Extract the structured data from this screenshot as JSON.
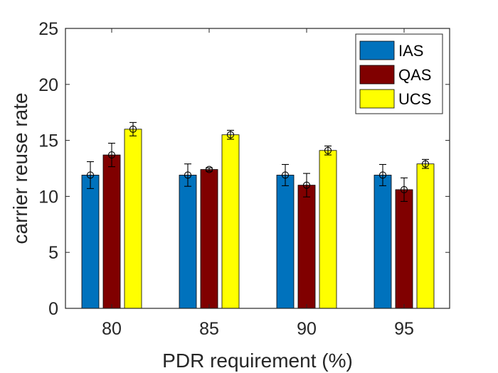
{
  "chart_data": {
    "type": "bar",
    "xlabel": "PDR requirement (%)",
    "ylabel": "carrier reuse rate",
    "ylim": [
      0,
      25
    ],
    "yticks": [
      0,
      5,
      10,
      15,
      20,
      25
    ],
    "categories": [
      "80",
      "85",
      "90",
      "95"
    ],
    "legend_position": "top-right",
    "series": [
      {
        "name": "IAS",
        "color": "#0072BD",
        "values": [
          11.9,
          11.9,
          11.9,
          11.9
        ],
        "err": [
          1.2,
          1.0,
          0.95,
          0.95
        ]
      },
      {
        "name": "QAS",
        "color": "#800000",
        "values": [
          13.7,
          12.4,
          11.0,
          10.6
        ],
        "err": [
          1.05,
          0.15,
          1.05,
          1.05
        ]
      },
      {
        "name": "UCS",
        "color": "#FFFF00",
        "values": [
          16.0,
          15.5,
          14.1,
          12.9
        ],
        "err": [
          0.6,
          0.4,
          0.4,
          0.4
        ]
      }
    ]
  }
}
